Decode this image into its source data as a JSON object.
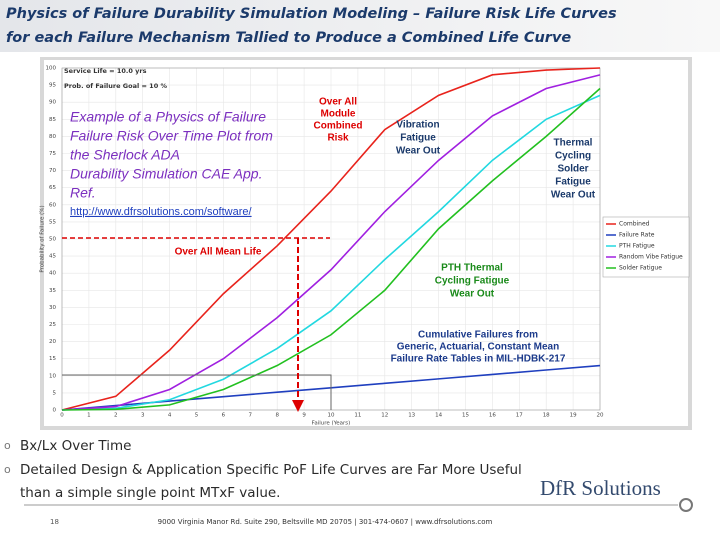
{
  "header": {
    "title_lines": [
      "Physics of Failure Durability Simulation Modeling – Failure Risk Life Curves",
      "for each  Failure Mechanism Tallied to Produce a Combined Life Curve"
    ]
  },
  "chart_data": {
    "type": "line",
    "x_label": "Failure (Years)",
    "y_label": "Probability of Failure (%)",
    "settings_text": [
      "Service Life = 10.0 yrs",
      "Prob. of Failure Goal = 10 %"
    ],
    "x": [
      0,
      2,
      4,
      6,
      8,
      10,
      12,
      14,
      16,
      18,
      20
    ],
    "xlim": [
      0,
      20
    ],
    "xticks": [
      0,
      1,
      2,
      3,
      4,
      5,
      6,
      7,
      8,
      9,
      10,
      11,
      12,
      13,
      14,
      15,
      16,
      17,
      18,
      19,
      20
    ],
    "ylim": [
      0,
      100
    ],
    "yticks": [
      0,
      5,
      10,
      15,
      20,
      25,
      30,
      35,
      40,
      45,
      50,
      55,
      60,
      65,
      70,
      75,
      80,
      85,
      90,
      95,
      100
    ],
    "grid": true,
    "legend_position": "right",
    "series": [
      {
        "name": "Combined",
        "color": "#e8231c",
        "values": [
          0,
          4,
          17.5,
          34,
          48,
          64,
          82,
          92,
          98,
          99.4,
          100
        ]
      },
      {
        "name": "Failure Rate",
        "color": "#1f3fbf",
        "values": [
          0,
          1.3,
          2.6,
          3.9,
          5.2,
          6.5,
          7.8,
          9.1,
          10.4,
          11.7,
          13
        ]
      },
      {
        "name": "PTH Fatigue",
        "color": "#22d8e0",
        "values": [
          0,
          0.5,
          3,
          9,
          18,
          29,
          44,
          58,
          73,
          85,
          92
        ]
      },
      {
        "name": "Random Vibe Fatigue",
        "color": "#a020e0",
        "values": [
          0,
          1,
          6,
          15,
          27,
          41,
          58,
          73,
          86,
          94,
          98
        ]
      },
      {
        "name": "Solder Fatigue",
        "color": "#22c020",
        "values": [
          0,
          0.2,
          1.5,
          6,
          13,
          22,
          35,
          53,
          67,
          80,
          94
        ]
      }
    ],
    "annotations": {
      "example": [
        "Example of a Physics of Failure",
        "Failure Risk Over Time Plot  from",
        "the Sherlock ADA",
        "Durability Simulation CAE App.",
        "Ref."
      ],
      "url": "http://www.dfrsolutions.com/software/",
      "combined": [
        "Over All",
        "Module",
        "Combined",
        "Risk"
      ],
      "vibration": [
        "Vibration",
        "Fatigue",
        "Wear Out"
      ],
      "solder": [
        "Thermal",
        "Cycling",
        "Solder",
        "Fatigue",
        "Wear Out"
      ],
      "mean_life": "Over All Mean Life",
      "pth": [
        "PTH  Thermal",
        "Cycling Fatigue",
        "Wear Out"
      ],
      "cumulative": [
        "Cumulative Failures from",
        "Generic, Actuarial, Constant Mean",
        "Failure Rate Tables in MIL-HDBK-217"
      ]
    }
  },
  "bullets": [
    "Bx/Lx Over Time",
    "Detailed Design & Application Specific PoF Life Curves are Far More Useful",
    "than a simple single point MTxF value."
  ],
  "footer": {
    "page": "18",
    "address": "9000 Virginia Manor Rd. Suite 290, Beltsville MD 20705 | 301-474-0607 | www.dfrsolutions.com"
  },
  "logo": "DfR Solutions"
}
